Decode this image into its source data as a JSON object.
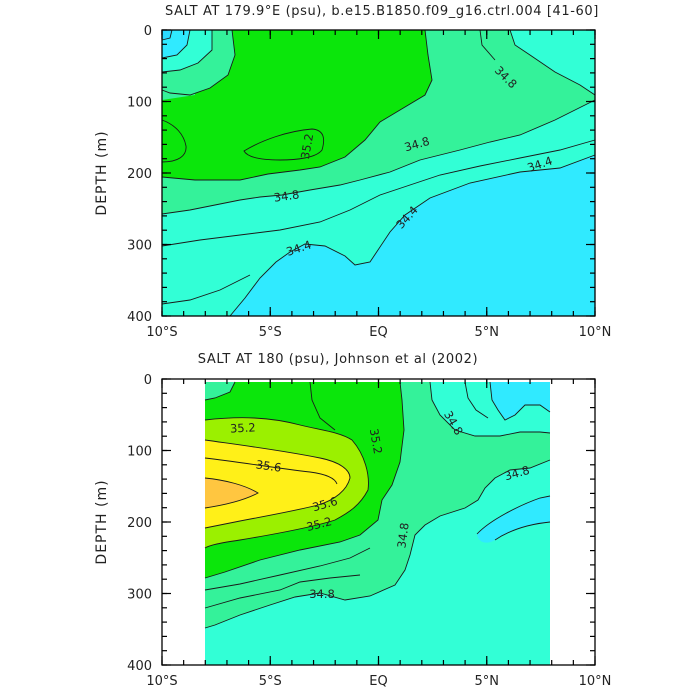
{
  "chart_data": [
    {
      "type": "contour",
      "title": "SALT AT 179.9°E (psu), b.e15.B1850.f09_g16.ctrl.004 [41-60]",
      "xlabel": "",
      "ylabel": "DEPTH (m)",
      "x_ticks": [
        "10°S",
        "5°S",
        "EQ",
        "5°N",
        "10°N"
      ],
      "y_ticks": [
        "0",
        "100",
        "200",
        "300",
        "400"
      ],
      "xlim": [
        -10,
        10
      ],
      "ylim": [
        400,
        0
      ],
      "contour_labels": [
        "35.2",
        "34.8",
        "34.8",
        "34.4",
        "34.8",
        "34.4",
        "34.4"
      ],
      "fill_colors": {
        "s34_0": "#30EAFF",
        "s34_4": "#32FFD6",
        "s34_8": "#34F29A",
        "s35_2": "#0BE60B",
        "s35_6": "#9BF000",
        "s36_0": "#FFF018",
        "s36_4": "#FFC640",
        "white": "#FFFFFF"
      }
    },
    {
      "type": "contour",
      "title": "SALT AT 180 (psu), Johnson et al (2002)",
      "xlabel": "",
      "ylabel": "DEPTH (m)",
      "x_ticks": [
        "10°S",
        "5°S",
        "EQ",
        "5°N",
        "10°N"
      ],
      "y_ticks": [
        "0",
        "100",
        "200",
        "300",
        "400"
      ],
      "xlim": [
        -10,
        10
      ],
      "ylim": [
        400,
        0
      ],
      "data_extent_x": [
        -8,
        8
      ],
      "contour_labels": [
        "35.2",
        "35.6",
        "35.6",
        "35.2",
        "35.2",
        "34.8",
        "34.8",
        "34.8",
        "34.8"
      ],
      "fill_colors": {
        "s34_0": "#30EAFF",
        "s34_4": "#32FFD6",
        "s34_8": "#34F29A",
        "s35_2": "#0BE60B",
        "s35_6": "#9BF000",
        "s36_0": "#FFF018",
        "s36_4": "#FFC640",
        "white": "#FFFFFF"
      }
    }
  ]
}
